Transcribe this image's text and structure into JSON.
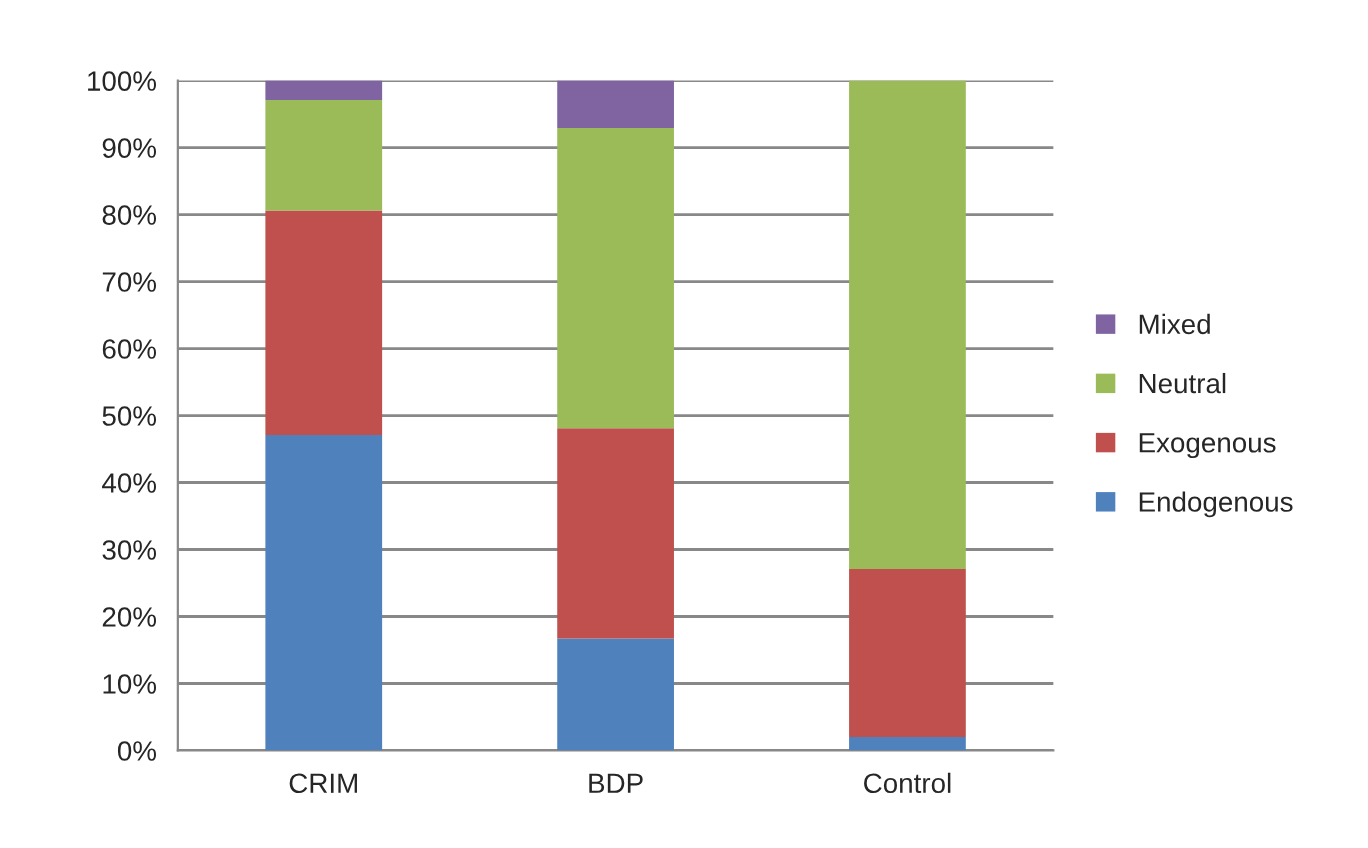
{
  "chart_data": {
    "type": "bar",
    "stacked": true,
    "categories": [
      "CRIM",
      "BDP",
      "Control"
    ],
    "series": [
      {
        "name": "Endogenous",
        "color": "#4f81bd",
        "values": [
          47.1,
          16.7,
          2.0
        ]
      },
      {
        "name": "Exogenous",
        "color": "#c0504d",
        "values": [
          33.5,
          31.4,
          25.1
        ]
      },
      {
        "name": "Neutral",
        "color": "#9bbb59",
        "values": [
          16.5,
          44.8,
          72.9
        ]
      },
      {
        "name": "Mixed",
        "color": "#8064a2",
        "values": [
          2.9,
          7.1,
          0
        ]
      }
    ],
    "ylim": [
      0,
      100
    ],
    "yticks": [
      {
        "value": 0,
        "label": "0%"
      },
      {
        "value": 10,
        "label": "10%"
      },
      {
        "value": 20,
        "label": "20%"
      },
      {
        "value": 30,
        "label": "30%"
      },
      {
        "value": 40,
        "label": "40%"
      },
      {
        "value": 50,
        "label": "50%"
      },
      {
        "value": 60,
        "label": "60%"
      },
      {
        "value": 70,
        "label": "70%"
      },
      {
        "value": 80,
        "label": "80%"
      },
      {
        "value": 90,
        "label": "90%"
      },
      {
        "value": 100,
        "label": "100%"
      }
    ],
    "grid": "y",
    "legend": "right"
  }
}
